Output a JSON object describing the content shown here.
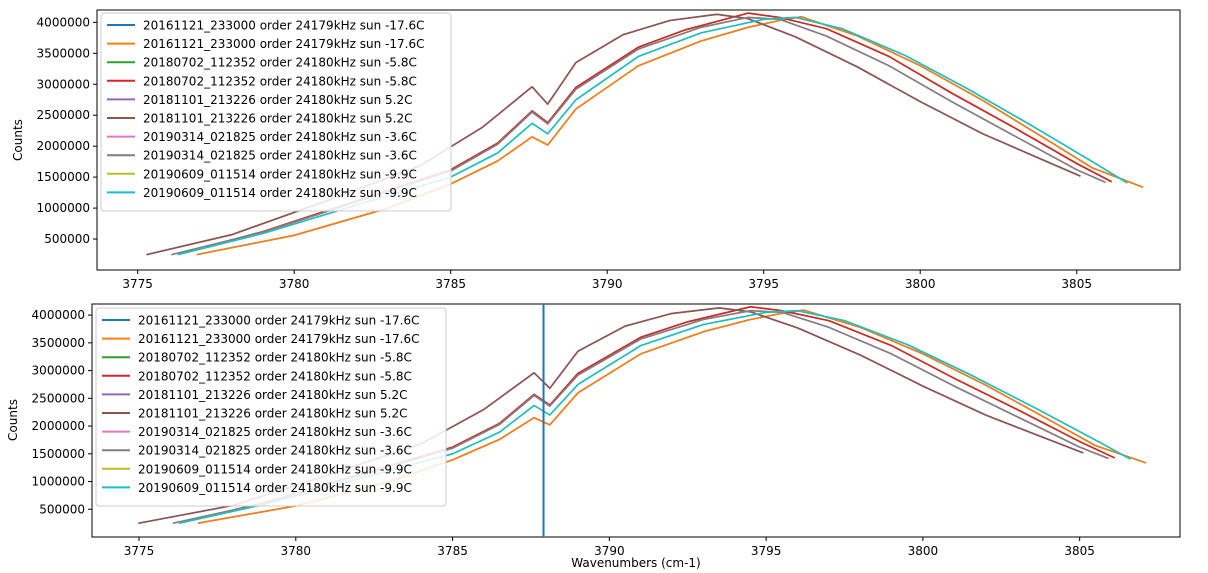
{
  "chart_data": [
    {
      "type": "line",
      "title": "",
      "xlabel": "",
      "ylabel": "Counts",
      "xlim": [
        3773.7,
        3808.3
      ],
      "ylim": [
        0,
        4200000
      ],
      "xticks": [
        3775,
        3780,
        3785,
        3790,
        3795,
        3800,
        3805
      ],
      "yticks": [
        500000,
        1000000,
        1500000,
        2000000,
        2500000,
        3000000,
        3500000,
        4000000
      ],
      "xtick_labels": [
        "3775",
        "3780",
        "3785",
        "3790",
        "3795",
        "3800",
        "3805"
      ],
      "ytick_labels": [
        "500000",
        "1000000",
        "1500000",
        "2000000",
        "2500000",
        "3000000",
        "3500000",
        "4000000"
      ],
      "grid": false,
      "legend_position": "upper-left",
      "series": [
        {
          "name": "20161121_233000 order 24179kHz sun -17.6C",
          "color": "#1f77b4",
          "x": [
            3776.9,
            3780,
            3783,
            3785,
            3786.5,
            3787.6,
            3788.1,
            3789,
            3791,
            3793,
            3794.5,
            3795.5,
            3796.2,
            3798,
            3800,
            3802,
            3804,
            3805.5,
            3807.1
          ],
          "y": [
            250000,
            560000,
            1000000,
            1390000,
            1760000,
            2150000,
            2020000,
            2600000,
            3300000,
            3700000,
            3920000,
            4030000,
            4090000,
            3780000,
            3300000,
            2740000,
            2120000,
            1650000,
            1340000
          ]
        },
        {
          "name": "20161121_233000 order 24179kHz sun -17.6C",
          "color": "#ff7f0e",
          "x": [
            3776.9,
            3780,
            3783,
            3785,
            3786.5,
            3787.6,
            3788.1,
            3789,
            3791,
            3793,
            3794.5,
            3795.5,
            3796.2,
            3798,
            3800,
            3802,
            3804,
            3805.5,
            3807.1
          ],
          "y": [
            250000,
            560000,
            1000000,
            1390000,
            1760000,
            2150000,
            2020000,
            2600000,
            3300000,
            3700000,
            3920000,
            4030000,
            4090000,
            3780000,
            3300000,
            2740000,
            2120000,
            1650000,
            1340000
          ]
        },
        {
          "name": "20180702_112352 order 24180kHz sun -5.8C",
          "color": "#2ca02c",
          "x": [
            3776.3,
            3779,
            3782,
            3785,
            3786.5,
            3787.6,
            3788.1,
            3789,
            3791,
            3792.5,
            3794.5,
            3795.5,
            3797,
            3799,
            3801,
            3803,
            3805,
            3806.1
          ],
          "y": [
            260000,
            620000,
            1120000,
            1620000,
            2050000,
            2570000,
            2380000,
            2950000,
            3600000,
            3880000,
            4150000,
            4080000,
            3900000,
            3450000,
            2860000,
            2300000,
            1720000,
            1430000
          ]
        },
        {
          "name": "20180702_112352 order 24180kHz sun -5.8C",
          "color": "#d62728",
          "x": [
            3776.3,
            3779,
            3782,
            3785,
            3786.5,
            3787.6,
            3788.1,
            3789,
            3791,
            3792.5,
            3794.5,
            3795.5,
            3797,
            3799,
            3801,
            3803,
            3805,
            3806.1
          ],
          "y": [
            260000,
            620000,
            1120000,
            1620000,
            2050000,
            2570000,
            2380000,
            2950000,
            3600000,
            3880000,
            4150000,
            4080000,
            3900000,
            3450000,
            2860000,
            2300000,
            1720000,
            1430000
          ]
        },
        {
          "name": "20181101_213226 order 24180kHz sun 5.2C",
          "color": "#9467bd",
          "x": [
            3775.3,
            3778,
            3781,
            3784,
            3786,
            3787.6,
            3788.1,
            3789,
            3790.5,
            3792,
            3793.5,
            3794.5,
            3796,
            3798,
            3800,
            3802,
            3804,
            3805.1
          ],
          "y": [
            250000,
            570000,
            1110000,
            1680000,
            2300000,
            2960000,
            2680000,
            3350000,
            3800000,
            4030000,
            4130000,
            4060000,
            3770000,
            3280000,
            2720000,
            2200000,
            1760000,
            1520000
          ]
        },
        {
          "name": "20181101_213226 order 24180kHz sun 5.2C",
          "color": "#8c564b",
          "x": [
            3775.3,
            3778,
            3781,
            3784,
            3786,
            3787.6,
            3788.1,
            3789,
            3790.5,
            3792,
            3793.5,
            3794.5,
            3796,
            3798,
            3800,
            3802,
            3804,
            3805.1
          ],
          "y": [
            250000,
            570000,
            1110000,
            1680000,
            2300000,
            2960000,
            2680000,
            3350000,
            3800000,
            4030000,
            4130000,
            4060000,
            3770000,
            3280000,
            2720000,
            2200000,
            1760000,
            1520000
          ]
        },
        {
          "name": "20190314_021825 order 24180kHz sun -3.6C",
          "color": "#e377c2",
          "x": [
            3776.1,
            3779,
            3782,
            3785,
            3786.5,
            3787.6,
            3788.1,
            3789,
            3791,
            3793,
            3794.5,
            3795.5,
            3797,
            3799,
            3801,
            3803,
            3805,
            3805.9
          ],
          "y": [
            250000,
            610000,
            1100000,
            1600000,
            2030000,
            2550000,
            2360000,
            2920000,
            3570000,
            3920000,
            4080000,
            4050000,
            3780000,
            3300000,
            2720000,
            2170000,
            1620000,
            1420000
          ]
        },
        {
          "name": "20190314_021825 order 24180kHz sun -3.6C",
          "color": "#7f7f7f",
          "x": [
            3776.1,
            3779,
            3782,
            3785,
            3786.5,
            3787.6,
            3788.1,
            3789,
            3791,
            3793,
            3794.5,
            3795.5,
            3797,
            3799,
            3801,
            3803,
            3805,
            3805.9
          ],
          "y": [
            250000,
            610000,
            1100000,
            1600000,
            2030000,
            2550000,
            2360000,
            2920000,
            3570000,
            3920000,
            4080000,
            4050000,
            3780000,
            3300000,
            2720000,
            2170000,
            1620000,
            1420000
          ]
        },
        {
          "name": "20190609_011514 order 24180kHz sun -9.9C",
          "color": "#bcbd22",
          "x": [
            3776.3,
            3779,
            3782,
            3785,
            3786.5,
            3787.6,
            3788.1,
            3789,
            3791,
            3793,
            3795,
            3796,
            3797.5,
            3799.5,
            3801.5,
            3803.5,
            3805.5,
            3806.6
          ],
          "y": [
            250000,
            590000,
            1050000,
            1500000,
            1890000,
            2370000,
            2200000,
            2750000,
            3450000,
            3830000,
            4050000,
            4080000,
            3900000,
            3470000,
            2930000,
            2350000,
            1750000,
            1410000
          ]
        },
        {
          "name": "20190609_011514 order 24180kHz sun -9.9C",
          "color": "#17becf",
          "x": [
            3776.3,
            3779,
            3782,
            3785,
            3786.5,
            3787.6,
            3788.1,
            3789,
            3791,
            3793,
            3795,
            3796,
            3797.5,
            3799.5,
            3801.5,
            3803.5,
            3805.5,
            3806.6
          ],
          "y": [
            250000,
            590000,
            1050000,
            1500000,
            1890000,
            2370000,
            2200000,
            2750000,
            3450000,
            3830000,
            4050000,
            4080000,
            3900000,
            3470000,
            2930000,
            2350000,
            1750000,
            1410000
          ]
        }
      ]
    },
    {
      "type": "line",
      "title": "",
      "xlabel": "Wavenumbers (cm-1)",
      "ylabel": "Counts",
      "xlim": [
        3773.5,
        3808.2
      ],
      "ylim": [
        0,
        4200000
      ],
      "xticks": [
        3775,
        3780,
        3785,
        3790,
        3795,
        3800,
        3805
      ],
      "yticks": [
        500000,
        1000000,
        1500000,
        2000000,
        2500000,
        3000000,
        3500000,
        4000000
      ],
      "xtick_labels": [
        "3775",
        "3780",
        "3785",
        "3790",
        "3795",
        "3800",
        "3805"
      ],
      "ytick_labels": [
        "500000",
        "1000000",
        "1500000",
        "2000000",
        "2500000",
        "3000000",
        "3500000",
        "4000000"
      ],
      "grid": false,
      "legend_position": "upper-left",
      "vline_x": 3787.9,
      "vline_color": "#1f77b4",
      "series": [
        {
          "name": "20161121_233000 order 24179kHz sun -17.6C",
          "color": "#1f77b4",
          "x": [
            3776.9,
            3780,
            3783,
            3785,
            3786.5,
            3787.6,
            3788.1,
            3789,
            3791,
            3793,
            3794.5,
            3795.5,
            3796.2,
            3798,
            3800,
            3802,
            3804,
            3805.5,
            3807.1
          ],
          "y": [
            250000,
            560000,
            1000000,
            1390000,
            1760000,
            2150000,
            2020000,
            2600000,
            3300000,
            3700000,
            3920000,
            4030000,
            4090000,
            3780000,
            3300000,
            2740000,
            2120000,
            1650000,
            1340000
          ]
        },
        {
          "name": "20161121_233000 order 24179kHz sun -17.6C",
          "color": "#ff7f0e",
          "x": [
            3776.9,
            3780,
            3783,
            3785,
            3786.5,
            3787.6,
            3788.1,
            3789,
            3791,
            3793,
            3794.5,
            3795.5,
            3796.2,
            3798,
            3800,
            3802,
            3804,
            3805.5,
            3807.1
          ],
          "y": [
            250000,
            560000,
            1000000,
            1390000,
            1760000,
            2150000,
            2020000,
            2600000,
            3300000,
            3700000,
            3920000,
            4030000,
            4090000,
            3780000,
            3300000,
            2740000,
            2120000,
            1650000,
            1340000
          ]
        },
        {
          "name": "20180702_112352 order 24180kHz sun -5.8C",
          "color": "#2ca02c",
          "x": [
            3776.3,
            3779,
            3782,
            3785,
            3786.5,
            3787.6,
            3788.1,
            3789,
            3791,
            3792.5,
            3794.5,
            3795.5,
            3797,
            3799,
            3801,
            3803,
            3805,
            3806.1
          ],
          "y": [
            260000,
            620000,
            1120000,
            1620000,
            2050000,
            2570000,
            2380000,
            2950000,
            3600000,
            3880000,
            4150000,
            4080000,
            3900000,
            3450000,
            2860000,
            2300000,
            1720000,
            1430000
          ]
        },
        {
          "name": "20180702_112352 order 24180kHz sun -5.8C",
          "color": "#d62728",
          "x": [
            3776.3,
            3779,
            3782,
            3785,
            3786.5,
            3787.6,
            3788.1,
            3789,
            3791,
            3792.5,
            3794.5,
            3795.5,
            3797,
            3799,
            3801,
            3803,
            3805,
            3806.1
          ],
          "y": [
            260000,
            620000,
            1120000,
            1620000,
            2050000,
            2570000,
            2380000,
            2950000,
            3600000,
            3880000,
            4150000,
            4080000,
            3900000,
            3450000,
            2860000,
            2300000,
            1720000,
            1430000
          ]
        },
        {
          "name": "20181101_213226 order 24180kHz sun 5.2C",
          "color": "#9467bd",
          "x": [
            3775.0,
            3778,
            3781,
            3784,
            3786,
            3787.6,
            3788.1,
            3789,
            3790.5,
            3792,
            3793.5,
            3794.5,
            3796,
            3798,
            3800,
            3802,
            3804,
            3805.1
          ],
          "y": [
            250000,
            570000,
            1110000,
            1680000,
            2300000,
            2960000,
            2680000,
            3350000,
            3800000,
            4030000,
            4130000,
            4060000,
            3770000,
            3280000,
            2720000,
            2200000,
            1760000,
            1520000
          ]
        },
        {
          "name": "20181101_213226 order 24180kHz sun 5.2C",
          "color": "#8c564b",
          "x": [
            3775.0,
            3778,
            3781,
            3784,
            3786,
            3787.6,
            3788.1,
            3789,
            3790.5,
            3792,
            3793.5,
            3794.5,
            3796,
            3798,
            3800,
            3802,
            3804,
            3805.1
          ],
          "y": [
            250000,
            570000,
            1110000,
            1680000,
            2300000,
            2960000,
            2680000,
            3350000,
            3800000,
            4030000,
            4130000,
            4060000,
            3770000,
            3280000,
            2720000,
            2200000,
            1760000,
            1520000
          ]
        },
        {
          "name": "20190314_021825 order 24180kHz sun -3.6C",
          "color": "#e377c2",
          "x": [
            3776.1,
            3779,
            3782,
            3785,
            3786.5,
            3787.6,
            3788.1,
            3789,
            3791,
            3793,
            3794.5,
            3795.5,
            3797,
            3799,
            3801,
            3803,
            3805,
            3805.9
          ],
          "y": [
            250000,
            610000,
            1100000,
            1600000,
            2030000,
            2550000,
            2360000,
            2920000,
            3570000,
            3920000,
            4080000,
            4050000,
            3780000,
            3300000,
            2720000,
            2170000,
            1620000,
            1420000
          ]
        },
        {
          "name": "20190314_021825 order 24180kHz sun -3.6C",
          "color": "#7f7f7f",
          "x": [
            3776.1,
            3779,
            3782,
            3785,
            3786.5,
            3787.6,
            3788.1,
            3789,
            3791,
            3793,
            3794.5,
            3795.5,
            3797,
            3799,
            3801,
            3803,
            3805,
            3805.9
          ],
          "y": [
            250000,
            610000,
            1100000,
            1600000,
            2030000,
            2550000,
            2360000,
            2920000,
            3570000,
            3920000,
            4080000,
            4050000,
            3780000,
            3300000,
            2720000,
            2170000,
            1620000,
            1420000
          ]
        },
        {
          "name": "20190609_011514 order 24180kHz sun -9.9C",
          "color": "#bcbd22",
          "x": [
            3776.3,
            3779,
            3782,
            3785,
            3786.5,
            3787.6,
            3788.1,
            3789,
            3791,
            3793,
            3795,
            3796,
            3797.5,
            3799.5,
            3801.5,
            3803.5,
            3805.5,
            3806.6
          ],
          "y": [
            250000,
            590000,
            1050000,
            1500000,
            1890000,
            2370000,
            2200000,
            2750000,
            3450000,
            3830000,
            4050000,
            4080000,
            3900000,
            3470000,
            2930000,
            2350000,
            1750000,
            1410000
          ]
        },
        {
          "name": "20190609_011514 order 24180kHz sun -9.9C",
          "color": "#17becf",
          "x": [
            3776.3,
            3779,
            3782,
            3785,
            3786.5,
            3787.6,
            3788.1,
            3789,
            3791,
            3793,
            3795,
            3796,
            3797.5,
            3799.5,
            3801.5,
            3803.5,
            3805.5,
            3806.6
          ],
          "y": [
            250000,
            590000,
            1050000,
            1500000,
            1890000,
            2370000,
            2200000,
            2750000,
            3450000,
            3830000,
            4050000,
            4080000,
            3900000,
            3470000,
            2930000,
            2350000,
            1750000,
            1410000
          ]
        }
      ]
    }
  ]
}
